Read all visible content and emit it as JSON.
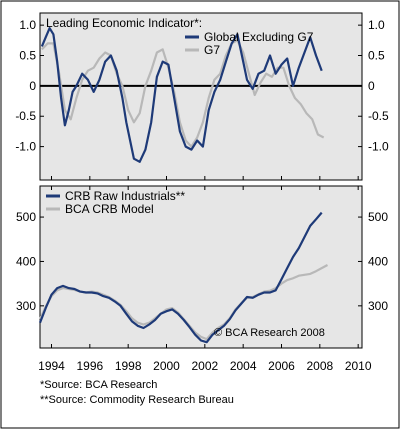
{
  "colors": {
    "border": "#000000",
    "panel_background": "#e6e6e6",
    "series_primary": "#1e3a78",
    "series_secondary": "#b8b8b8",
    "zero_line": "#000000"
  },
  "chart_data": [
    {
      "type": "line",
      "title": "Leading Economic Indicator*:",
      "xlabel": "",
      "ylabel": "",
      "xlim": [
        1993.4,
        2010.2
      ],
      "ylim": [
        -1.55,
        1.2
      ],
      "y_ticks": [
        -1.0,
        -0.5,
        0,
        0.5,
        1.0
      ],
      "y_tick_labels": [
        "-1.0",
        "-0.5",
        "0",
        "0.5",
        "1.0"
      ],
      "reference_line": 0,
      "grid": false,
      "legend_position": "top-right",
      "series": [
        {
          "name": "Global Excluding G7",
          "color": "#1e3a78",
          "x": [
            1993.5,
            1993.7,
            1993.9,
            1994.1,
            1994.3,
            1994.5,
            1994.7,
            1994.9,
            1995.1,
            1995.3,
            1995.6,
            1995.9,
            1996.2,
            1996.5,
            1996.8,
            1997.1,
            1997.4,
            1997.7,
            1997.9,
            1998.1,
            1998.3,
            1998.6,
            1998.9,
            1999.2,
            1999.5,
            1999.8,
            2000.1,
            2000.4,
            2000.7,
            2001.0,
            2001.3,
            2001.6,
            2001.9,
            2002.2,
            2002.5,
            2002.8,
            2003.1,
            2003.4,
            2003.7,
            2004.0,
            2004.2,
            2004.5,
            2004.8,
            2005.1,
            2005.4,
            2005.7,
            2006.0,
            2006.3,
            2006.6,
            2006.9,
            2007.2,
            2007.5,
            2007.8,
            2008.1
          ],
          "y": [
            0.65,
            0.8,
            0.95,
            0.85,
            0.4,
            -0.2,
            -0.65,
            -0.4,
            -0.1,
            0.0,
            0.2,
            0.1,
            -0.1,
            0.1,
            0.4,
            0.5,
            0.25,
            -0.2,
            -0.6,
            -0.9,
            -1.2,
            -1.25,
            -1.05,
            -0.6,
            0.15,
            0.4,
            0.35,
            -0.2,
            -0.75,
            -1.0,
            -1.05,
            -0.9,
            -1.0,
            -0.4,
            -0.1,
            0.1,
            0.4,
            0.7,
            0.85,
            0.4,
            0.1,
            -0.05,
            0.2,
            0.25,
            0.5,
            0.2,
            0.35,
            0.45,
            0.0,
            0.3,
            0.55,
            0.8,
            0.5,
            0.25
          ]
        },
        {
          "name": "G7",
          "color": "#b8b8b8",
          "x": [
            1993.5,
            1993.8,
            1994.1,
            1994.4,
            1994.7,
            1995.0,
            1995.3,
            1995.6,
            1995.9,
            1996.2,
            1996.5,
            1996.8,
            1997.1,
            1997.4,
            1997.7,
            1998.0,
            1998.3,
            1998.6,
            1998.9,
            1999.2,
            1999.5,
            1999.8,
            2000.1,
            2000.4,
            2000.7,
            2001.0,
            2001.3,
            2001.6,
            2001.9,
            2002.2,
            2002.5,
            2002.8,
            2003.1,
            2003.4,
            2003.7,
            2004.0,
            2004.3,
            2004.6,
            2004.9,
            2005.2,
            2005.5,
            2005.8,
            2006.1,
            2006.4,
            2006.7,
            2007.0,
            2007.3,
            2007.6,
            2007.9,
            2008.2
          ],
          "y": [
            0.6,
            0.7,
            0.7,
            0.2,
            -0.4,
            -0.55,
            -0.2,
            0.1,
            0.25,
            0.3,
            0.45,
            0.55,
            0.5,
            0.2,
            0.0,
            -0.4,
            -0.6,
            -0.45,
            0.0,
            0.25,
            0.55,
            0.6,
            0.3,
            -0.1,
            -0.6,
            -0.9,
            -1.0,
            -0.85,
            -0.6,
            -0.2,
            0.1,
            0.2,
            0.5,
            0.7,
            0.75,
            0.55,
            0.2,
            -0.15,
            0.05,
            0.2,
            0.15,
            0.3,
            0.3,
            0.0,
            -0.2,
            -0.3,
            -0.45,
            -0.55,
            -0.8,
            -0.85
          ]
        }
      ]
    },
    {
      "type": "line",
      "title": "",
      "xlabel": "",
      "ylabel": "",
      "xlim": [
        1993.4,
        2010.2
      ],
      "ylim": [
        205,
        570
      ],
      "y_ticks": [
        300,
        400,
        500
      ],
      "y_tick_labels": [
        "300",
        "400",
        "500"
      ],
      "x_ticks": [
        1994,
        1996,
        1998,
        2000,
        2002,
        2004,
        2006,
        2008,
        2010
      ],
      "x_tick_labels": [
        "1994",
        "1996",
        "1998",
        "2000",
        "2002",
        "2004",
        "2006",
        "2008",
        "2010"
      ],
      "grid": false,
      "legend_position": "top-left",
      "annotation": "© BCA Research 2008",
      "series": [
        {
          "name": "CRB Raw Industrials**",
          "color": "#1e3a78",
          "x": [
            1993.4,
            1993.7,
            1994.0,
            1994.3,
            1994.6,
            1994.9,
            1995.2,
            1995.5,
            1995.8,
            1996.1,
            1996.4,
            1996.7,
            1997.0,
            1997.3,
            1997.6,
            1997.9,
            1998.2,
            1998.5,
            1998.8,
            1999.1,
            1999.4,
            1999.7,
            2000.0,
            2000.3,
            2000.6,
            2000.9,
            2001.2,
            2001.5,
            2001.8,
            2002.1,
            2002.4,
            2002.7,
            2003.0,
            2003.3,
            2003.6,
            2003.9,
            2004.2,
            2004.5,
            2004.8,
            2005.1,
            2005.4,
            2005.7,
            2006.0,
            2006.3,
            2006.6,
            2006.9,
            2007.2,
            2007.5,
            2007.8,
            2008.1
          ],
          "y": [
            262,
            295,
            325,
            340,
            345,
            340,
            338,
            332,
            330,
            330,
            328,
            322,
            318,
            310,
            300,
            282,
            265,
            255,
            250,
            258,
            268,
            282,
            288,
            292,
            282,
            268,
            252,
            235,
            222,
            218,
            235,
            245,
            255,
            270,
            290,
            305,
            320,
            318,
            325,
            330,
            330,
            335,
            360,
            385,
            410,
            430,
            455,
            480,
            495,
            510
          ]
        },
        {
          "name": "BCA CRB Model",
          "color": "#b8b8b8",
          "x": [
            1993.4,
            1993.7,
            1994.0,
            1994.3,
            1994.6,
            1994.9,
            1995.2,
            1995.5,
            1995.8,
            1996.1,
            1996.4,
            1996.7,
            1997.0,
            1997.3,
            1997.6,
            1997.9,
            1998.2,
            1998.5,
            1998.8,
            1999.1,
            1999.4,
            1999.7,
            2000.0,
            2000.3,
            2000.6,
            2000.9,
            2001.2,
            2001.5,
            2001.8,
            2002.1,
            2002.4,
            2002.7,
            2003.0,
            2003.3,
            2003.6,
            2003.9,
            2004.2,
            2004.5,
            2004.8,
            2005.1,
            2005.4,
            2005.7,
            2006.0,
            2006.3,
            2006.6,
            2006.9,
            2007.2,
            2007.5,
            2007.8,
            2008.1,
            2008.4
          ],
          "y": [
            270,
            298,
            322,
            335,
            340,
            338,
            336,
            332,
            330,
            332,
            330,
            325,
            320,
            312,
            302,
            288,
            272,
            262,
            258,
            262,
            272,
            282,
            292,
            295,
            285,
            270,
            255,
            240,
            230,
            225,
            240,
            250,
            258,
            272,
            292,
            306,
            318,
            320,
            326,
            332,
            334,
            340,
            350,
            358,
            362,
            368,
            370,
            372,
            378,
            385,
            392
          ]
        }
      ]
    }
  ],
  "footnotes": {
    "line1": "*Source: BCA Research",
    "line2": "**Source: Commodity Research Bureau"
  }
}
